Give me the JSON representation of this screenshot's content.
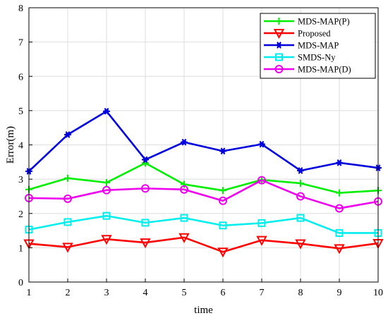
{
  "chart_data": {
    "type": "line",
    "xlabel": "time",
    "ylabel": "Error(m)",
    "x": [
      1,
      2,
      3,
      4,
      5,
      6,
      7,
      8,
      9,
      10
    ],
    "xlim": [
      1,
      10
    ],
    "ylim": [
      0,
      8
    ],
    "xticks": [
      "1",
      "2",
      "3",
      "4",
      "5",
      "6",
      "7",
      "8",
      "9",
      "10"
    ],
    "yticks": [
      "0",
      "1",
      "2",
      "3",
      "4",
      "5",
      "6",
      "7",
      "8"
    ],
    "grid": true,
    "legend_position": "top-right",
    "series": [
      {
        "name": "MDS-MAP(P)",
        "color": "#00ee00",
        "marker": "plus",
        "values": [
          2.7,
          3.03,
          2.9,
          3.47,
          2.85,
          2.67,
          2.98,
          2.88,
          2.6,
          2.67
        ]
      },
      {
        "name": "Proposed",
        "color": "#ff0000",
        "marker": "triangle-down",
        "values": [
          1.12,
          1.02,
          1.25,
          1.15,
          1.3,
          0.88,
          1.22,
          1.12,
          0.98,
          1.13
        ]
      },
      {
        "name": "MDS-MAP",
        "color": "#0000dd",
        "marker": "asterisk",
        "values": [
          3.23,
          4.3,
          4.98,
          3.57,
          4.08,
          3.82,
          4.02,
          3.25,
          3.48,
          3.33
        ]
      },
      {
        "name": "SMDS-Ny",
        "color": "#00eeee",
        "marker": "square",
        "values": [
          1.53,
          1.75,
          1.93,
          1.73,
          1.87,
          1.65,
          1.72,
          1.87,
          1.43,
          1.43
        ]
      },
      {
        "name": "MDS-MAP(D)",
        "color": "#ee00ee",
        "marker": "circle",
        "values": [
          2.45,
          2.43,
          2.68,
          2.73,
          2.7,
          2.37,
          2.97,
          2.5,
          2.15,
          2.35
        ]
      }
    ]
  }
}
